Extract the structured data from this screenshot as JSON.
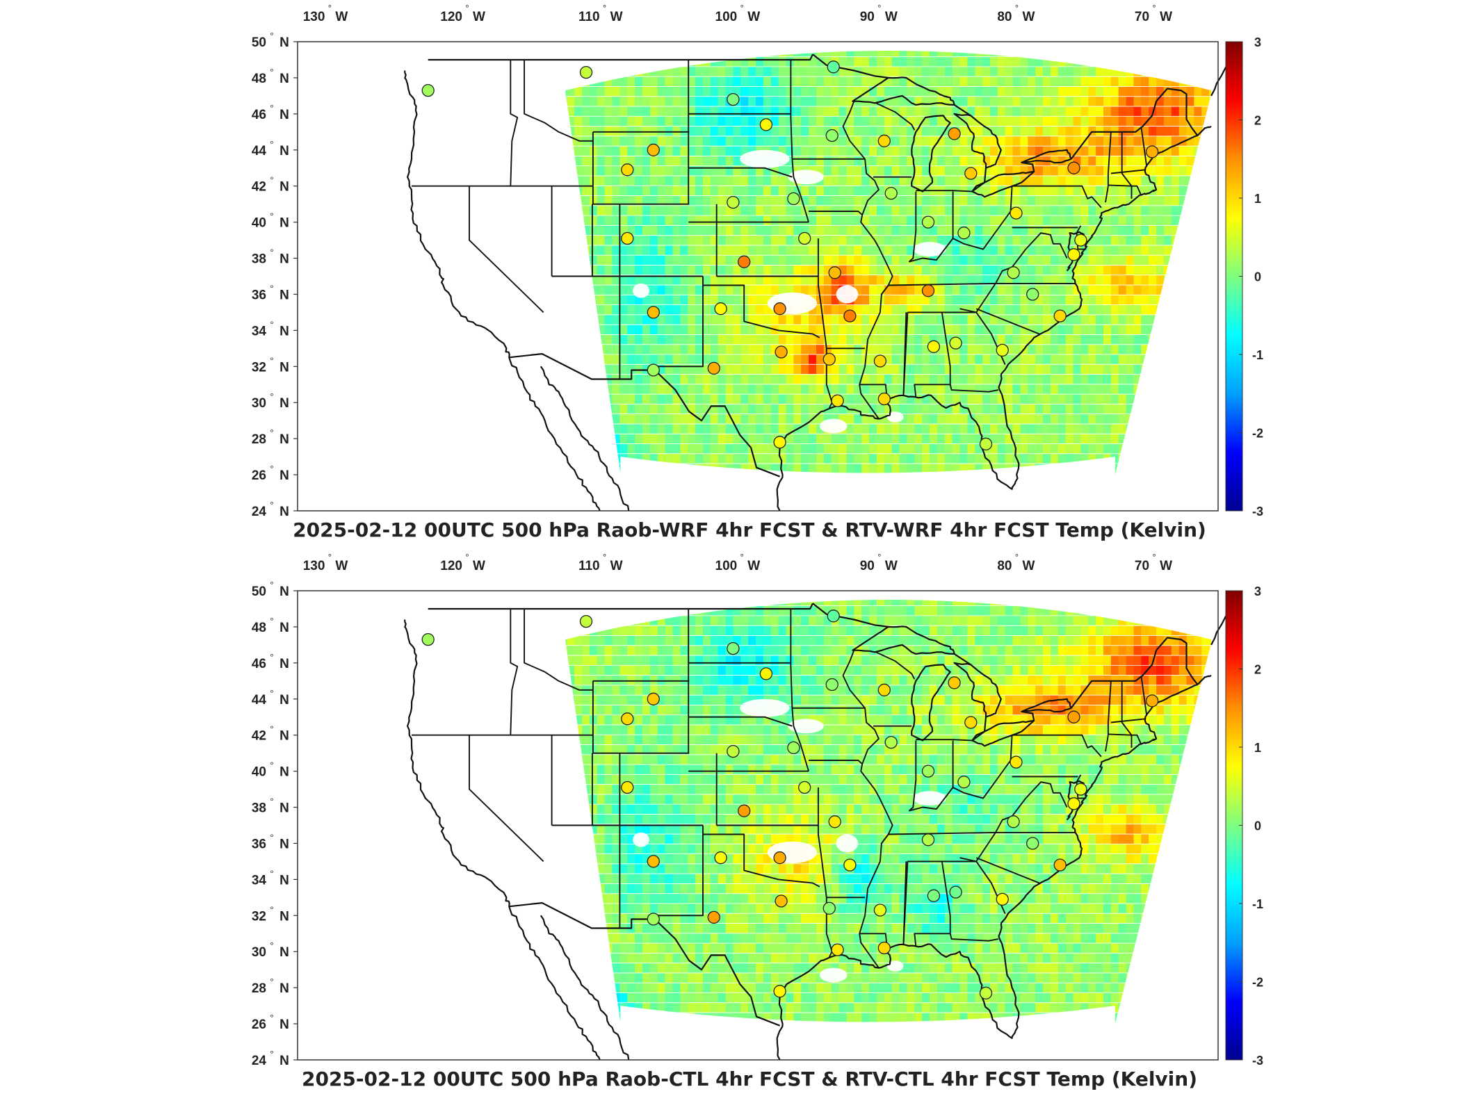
{
  "colorbar": {
    "ticks": [
      "3",
      "2",
      "1",
      "0",
      "-1",
      "-2",
      "-3"
    ],
    "colormap": "jet",
    "stops": [
      "#00008f",
      "#0000ff",
      "#00a0ff",
      "#00ffff",
      "#7fff7f",
      "#ffff00",
      "#ff9000",
      "#ff0000",
      "#800000"
    ]
  },
  "axes": {
    "lon_labels": [
      "130",
      "120",
      "110",
      "100",
      "90",
      "80",
      "70"
    ],
    "lon_suffix": "W",
    "lat_labels": [
      "50",
      "48",
      "46",
      "44",
      "42",
      "40",
      "38",
      "36",
      "34",
      "32",
      "30",
      "28",
      "26",
      "24"
    ],
    "lat_suffix": "N",
    "degree_symbol": "°"
  },
  "panels": [
    {
      "title": "2025-02-12 00UTC 500 hPa Raob-WRF 4hr FCST & RTV-WRF 4hr FCST Temp (Kelvin)",
      "stations": [
        {
          "lon": -123.0,
          "lat": 47.3,
          "value": 0.2
        },
        {
          "lon": -111.5,
          "lat": 48.3,
          "value": 0.4
        },
        {
          "lon": -100.8,
          "lat": 46.8,
          "value": 0.0
        },
        {
          "lon": -93.5,
          "lat": 48.6,
          "value": -0.2
        },
        {
          "lon": -98.4,
          "lat": 45.4,
          "value": 0.8
        },
        {
          "lon": -93.6,
          "lat": 44.8,
          "value": 0.1
        },
        {
          "lon": -106.6,
          "lat": 44.0,
          "value": 1.2
        },
        {
          "lon": -108.5,
          "lat": 42.9,
          "value": 1.0
        },
        {
          "lon": -100.8,
          "lat": 41.1,
          "value": 0.4
        },
        {
          "lon": -96.4,
          "lat": 41.3,
          "value": 0.2
        },
        {
          "lon": -89.8,
          "lat": 44.5,
          "value": 1.0
        },
        {
          "lon": -84.7,
          "lat": 44.9,
          "value": 1.4
        },
        {
          "lon": -83.5,
          "lat": 42.7,
          "value": 1.1
        },
        {
          "lon": -76.0,
          "lat": 43.0,
          "value": 1.5
        },
        {
          "lon": -70.3,
          "lat": 43.9,
          "value": 1.3
        },
        {
          "lon": -89.3,
          "lat": 41.6,
          "value": 0.3
        },
        {
          "lon": -86.6,
          "lat": 40.0,
          "value": 0.3
        },
        {
          "lon": -84.0,
          "lat": 39.4,
          "value": 0.3
        },
        {
          "lon": -80.2,
          "lat": 40.5,
          "value": 0.9
        },
        {
          "lon": -76.0,
          "lat": 38.2,
          "value": 0.8
        },
        {
          "lon": -75.5,
          "lat": 39.0,
          "value": 0.6
        },
        {
          "lon": -108.5,
          "lat": 39.1,
          "value": 0.9
        },
        {
          "lon": -100.0,
          "lat": 37.8,
          "value": 1.6
        },
        {
          "lon": -95.6,
          "lat": 39.1,
          "value": 0.5
        },
        {
          "lon": -93.4,
          "lat": 37.2,
          "value": 1.2
        },
        {
          "lon": -86.6,
          "lat": 36.2,
          "value": 1.5
        },
        {
          "lon": -80.4,
          "lat": 37.2,
          "value": 0.3
        },
        {
          "lon": -79.0,
          "lat": 36.0,
          "value": 0.1
        },
        {
          "lon": -77.0,
          "lat": 34.8,
          "value": 1.0
        },
        {
          "lon": -106.6,
          "lat": 35.0,
          "value": 1.2
        },
        {
          "lon": -101.7,
          "lat": 35.2,
          "value": 0.8
        },
        {
          "lon": -97.4,
          "lat": 35.2,
          "value": 1.5
        },
        {
          "lon": -92.3,
          "lat": 34.8,
          "value": 1.6
        },
        {
          "lon": -97.3,
          "lat": 32.8,
          "value": 1.3
        },
        {
          "lon": -93.8,
          "lat": 32.4,
          "value": 1.1
        },
        {
          "lon": -90.1,
          "lat": 32.3,
          "value": 1.0
        },
        {
          "lon": -86.2,
          "lat": 33.1,
          "value": 0.8
        },
        {
          "lon": -84.6,
          "lat": 33.3,
          "value": 0.5
        },
        {
          "lon": -81.2,
          "lat": 32.9,
          "value": 0.6
        },
        {
          "lon": -106.6,
          "lat": 31.8,
          "value": 0.2
        },
        {
          "lon": -102.2,
          "lat": 31.9,
          "value": 1.3
        },
        {
          "lon": -93.2,
          "lat": 30.1,
          "value": 0.9
        },
        {
          "lon": -89.8,
          "lat": 30.2,
          "value": 1.0
        },
        {
          "lon": -97.4,
          "lat": 27.8,
          "value": 0.8
        },
        {
          "lon": -82.4,
          "lat": 27.7,
          "value": 0.4
        }
      ]
    },
    {
      "title": "2025-02-12 00UTC 500 hPa Raob-CTL 4hr FCST & RTV-CTL 4hr FCST Temp (Kelvin)",
      "stations": [
        {
          "lon": -123.0,
          "lat": 47.3,
          "value": 0.2
        },
        {
          "lon": -111.5,
          "lat": 48.3,
          "value": 0.4
        },
        {
          "lon": -100.8,
          "lat": 46.8,
          "value": 0.0
        },
        {
          "lon": -93.5,
          "lat": 48.6,
          "value": -0.2
        },
        {
          "lon": -98.4,
          "lat": 45.4,
          "value": 0.8
        },
        {
          "lon": -93.6,
          "lat": 44.8,
          "value": 0.1
        },
        {
          "lon": -106.6,
          "lat": 44.0,
          "value": 1.1
        },
        {
          "lon": -108.5,
          "lat": 42.9,
          "value": 1.0
        },
        {
          "lon": -100.8,
          "lat": 41.1,
          "value": 0.4
        },
        {
          "lon": -96.4,
          "lat": 41.3,
          "value": 0.2
        },
        {
          "lon": -89.8,
          "lat": 44.5,
          "value": 1.0
        },
        {
          "lon": -84.7,
          "lat": 44.9,
          "value": 1.1
        },
        {
          "lon": -83.5,
          "lat": 42.7,
          "value": 1.0
        },
        {
          "lon": -76.0,
          "lat": 43.0,
          "value": 1.4
        },
        {
          "lon": -70.3,
          "lat": 43.9,
          "value": 1.3
        },
        {
          "lon": -89.3,
          "lat": 41.6,
          "value": 0.3
        },
        {
          "lon": -86.6,
          "lat": 40.0,
          "value": 0.2
        },
        {
          "lon": -84.0,
          "lat": 39.4,
          "value": 0.3
        },
        {
          "lon": -80.2,
          "lat": 40.5,
          "value": 0.9
        },
        {
          "lon": -76.0,
          "lat": 38.2,
          "value": 0.8
        },
        {
          "lon": -75.5,
          "lat": 39.0,
          "value": 0.6
        },
        {
          "lon": -108.5,
          "lat": 39.1,
          "value": 0.9
        },
        {
          "lon": -100.0,
          "lat": 37.8,
          "value": 1.4
        },
        {
          "lon": -95.6,
          "lat": 39.1,
          "value": 0.5
        },
        {
          "lon": -93.4,
          "lat": 37.2,
          "value": 0.9
        },
        {
          "lon": -86.6,
          "lat": 36.2,
          "value": 0.3
        },
        {
          "lon": -80.4,
          "lat": 37.2,
          "value": 0.3
        },
        {
          "lon": -79.0,
          "lat": 36.0,
          "value": 0.1
        },
        {
          "lon": -77.0,
          "lat": 34.8,
          "value": 1.2
        },
        {
          "lon": -106.6,
          "lat": 35.0,
          "value": 1.2
        },
        {
          "lon": -101.7,
          "lat": 35.2,
          "value": 0.8
        },
        {
          "lon": -97.4,
          "lat": 35.2,
          "value": 1.3
        },
        {
          "lon": -92.3,
          "lat": 34.8,
          "value": 0.7
        },
        {
          "lon": -97.3,
          "lat": 32.8,
          "value": 1.2
        },
        {
          "lon": -93.8,
          "lat": 32.4,
          "value": 0.1
        },
        {
          "lon": -90.1,
          "lat": 32.3,
          "value": 0.6
        },
        {
          "lon": -86.2,
          "lat": 33.1,
          "value": 0.0
        },
        {
          "lon": -84.6,
          "lat": 33.3,
          "value": -0.1
        },
        {
          "lon": -81.2,
          "lat": 32.9,
          "value": 0.8
        },
        {
          "lon": -106.6,
          "lat": 31.8,
          "value": 0.2
        },
        {
          "lon": -102.2,
          "lat": 31.9,
          "value": 1.4
        },
        {
          "lon": -93.2,
          "lat": 30.1,
          "value": 0.9
        },
        {
          "lon": -89.8,
          "lat": 30.2,
          "value": 1.0
        },
        {
          "lon": -97.4,
          "lat": 27.8,
          "value": 0.8
        },
        {
          "lon": -82.4,
          "lat": 27.7,
          "value": 0.4
        }
      ]
    }
  ]
}
